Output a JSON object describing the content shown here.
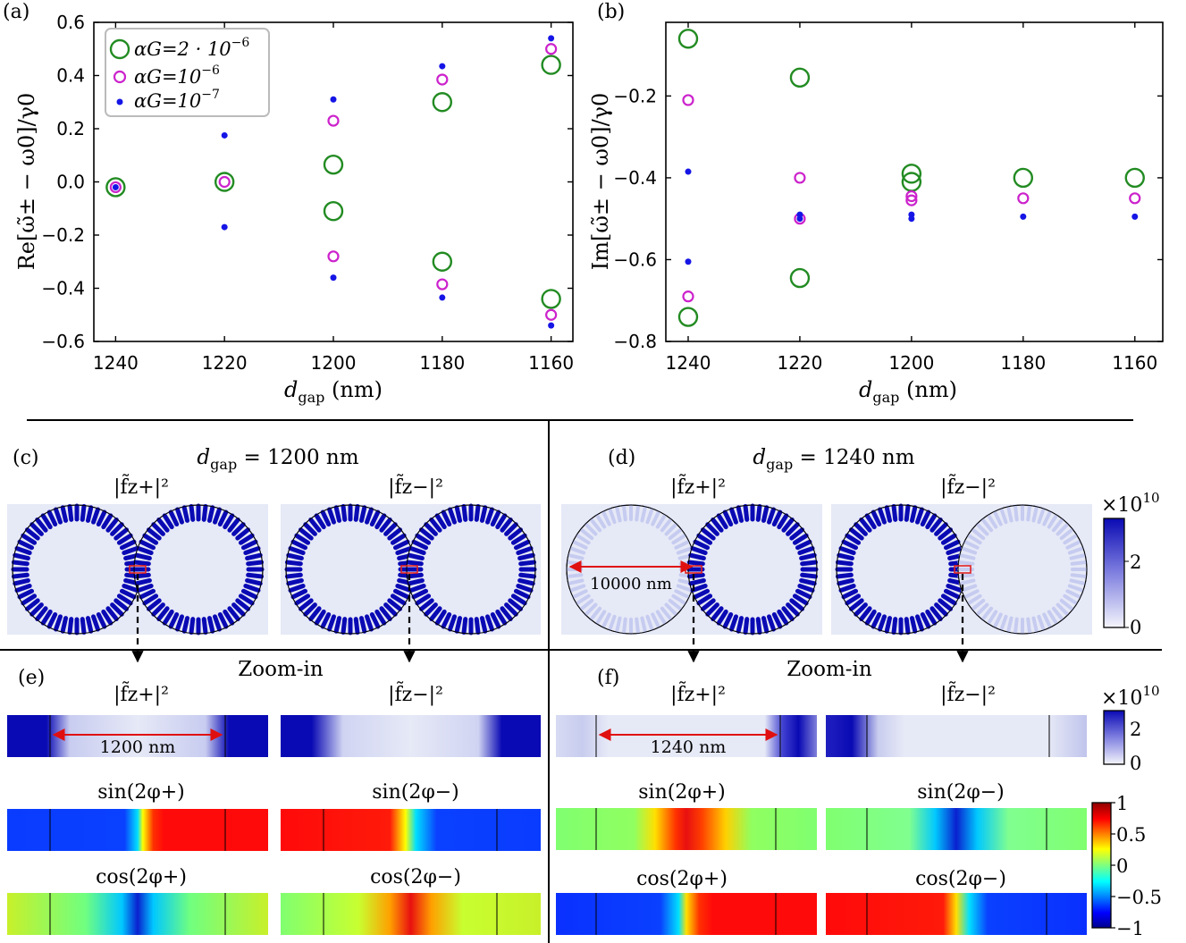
{
  "colors": {
    "green": "#228B22",
    "magenta": "#CC22CC",
    "blue": "#1515E6",
    "field_bg": "#E6E9F6",
    "field_dark": "#0A0AB4",
    "arrow_red": "#E01010",
    "marker_red": "#E02020"
  },
  "panel_labels": {
    "a": "(a)",
    "b": "(b)",
    "c": "(c)",
    "d": "(d)",
    "e": "(e)",
    "f": "(f)"
  },
  "chart_data": [
    {
      "type": "scatter",
      "panel": "(a)",
      "xlabel": "d_gap (nm)",
      "ylabel": "Re[ω̃± − ω0]/γ0",
      "x_ticks": [
        1240,
        1220,
        1200,
        1180,
        1160
      ],
      "y_ticks": [
        -0.6,
        -0.4,
        -0.2,
        0.0,
        0.2,
        0.4,
        0.6
      ],
      "y_tick_labels": [
        "−0.6",
        "−0.4",
        "−0.2",
        "0.0",
        "0.2",
        "0.4",
        "0.6"
      ],
      "xlim": [
        1244,
        1156
      ],
      "ylim": [
        -0.6,
        0.6
      ],
      "legend_position": "top-left",
      "series": [
        {
          "name": "αG=2·10^-6",
          "marker": "large-open-circle",
          "color": "green",
          "x": [
            1240,
            1220,
            1200,
            1200,
            1180,
            1180,
            1160,
            1160
          ],
          "y": [
            -0.02,
            0.0,
            0.065,
            -0.11,
            0.3,
            -0.3,
            0.44,
            -0.44
          ]
        },
        {
          "name": "αG=10^-6",
          "marker": "open-circle",
          "color": "magenta",
          "x": [
            1240,
            1220,
            1200,
            1200,
            1180,
            1180,
            1160,
            1160
          ],
          "y": [
            -0.02,
            0.0,
            0.23,
            -0.28,
            0.385,
            -0.385,
            0.5,
            -0.5
          ]
        },
        {
          "name": "αG=10^-7",
          "marker": "dot",
          "color": "blue",
          "x": [
            1240,
            1220,
            1220,
            1200,
            1200,
            1180,
            1180,
            1160,
            1160
          ],
          "y": [
            -0.02,
            0.175,
            -0.17,
            0.31,
            -0.36,
            0.435,
            -0.435,
            0.54,
            -0.54
          ]
        }
      ]
    },
    {
      "type": "scatter",
      "panel": "(b)",
      "xlabel": "d_gap (nm)",
      "ylabel": "Im[ω̃± − ω0]/γ0",
      "x_ticks": [
        1240,
        1220,
        1200,
        1180,
        1160
      ],
      "y_ticks": [
        -0.8,
        -0.6,
        -0.4,
        -0.2
      ],
      "y_tick_labels": [
        "−0.8",
        "−0.6",
        "−0.4",
        "−0.2"
      ],
      "xlim": [
        1244,
        1155
      ],
      "ylim": [
        -0.8,
        -0.02
      ],
      "series": [
        {
          "name": "αG=2·10^-6",
          "marker": "large-open-circle",
          "color": "green",
          "x": [
            1240,
            1240,
            1220,
            1220,
            1200,
            1200,
            1180,
            1160
          ],
          "y": [
            -0.06,
            -0.74,
            -0.155,
            -0.645,
            -0.39,
            -0.41,
            -0.4,
            -0.4
          ]
        },
        {
          "name": "αG=10^-6",
          "marker": "open-circle",
          "color": "magenta",
          "x": [
            1240,
            1240,
            1220,
            1220,
            1200,
            1200,
            1180,
            1160
          ],
          "y": [
            -0.21,
            -0.69,
            -0.4,
            -0.5,
            -0.445,
            -0.455,
            -0.45,
            -0.45
          ]
        },
        {
          "name": "αG=10^-7",
          "marker": "dot",
          "color": "blue",
          "x": [
            1240,
            1240,
            1220,
            1220,
            1200,
            1200,
            1180,
            1160
          ],
          "y": [
            -0.385,
            -0.605,
            -0.49,
            -0.5,
            -0.49,
            -0.5,
            -0.495,
            -0.495
          ]
        }
      ]
    }
  ],
  "legend": {
    "entries": [
      {
        "name": "αG=2 · 10",
        "exp": "−6",
        "color": "green",
        "marker": "large-open-circle"
      },
      {
        "name": "αG=10",
        "exp": "−6",
        "color": "magenta",
        "marker": "open-circle"
      },
      {
        "name": "αG=10",
        "exp": "−7",
        "color": "blue",
        "marker": "dot"
      }
    ]
  },
  "axis_text": {
    "xlabel_main": "d",
    "xlabel_sub": "gap",
    "xlabel_unit": " (nm)",
    "ylabel_a": "Re[ω̃± − ω0]/γ0",
    "ylabel_b": "Im[ω̃± − ω0]/γ0"
  },
  "field_maps": {
    "title_c": "d_gap = 1200 nm",
    "title_d": "d_gap = 1240 nm",
    "title_c_main": "d",
    "title_c_sub": "gap",
    "title_c_rest": " = 1200 nm",
    "title_d_rest": " = 1240 nm",
    "label_plus": "|f̃z+|²",
    "label_minus": "|f̃z−|²",
    "radius_label": "10000 nm",
    "zoom_label": "Zoom-in",
    "gap_e": "1200 nm",
    "gap_f": "1240 nm",
    "sin_plus": "sin(2φ+)",
    "sin_minus": "sin(2φ−)",
    "cos_plus": "cos(2φ+)",
    "cos_minus": "cos(2φ−)"
  },
  "colorbar_field": {
    "multiplier": "×10",
    "exp": "10",
    "ticks": [
      "0",
      "2"
    ],
    "values": [
      0,
      2
    ]
  },
  "colorbar_phase": {
    "ticks": [
      "1",
      "0.5",
      "0",
      "−0.5",
      "−1"
    ],
    "values": [
      1,
      0.5,
      0,
      -0.5,
      -1
    ]
  }
}
